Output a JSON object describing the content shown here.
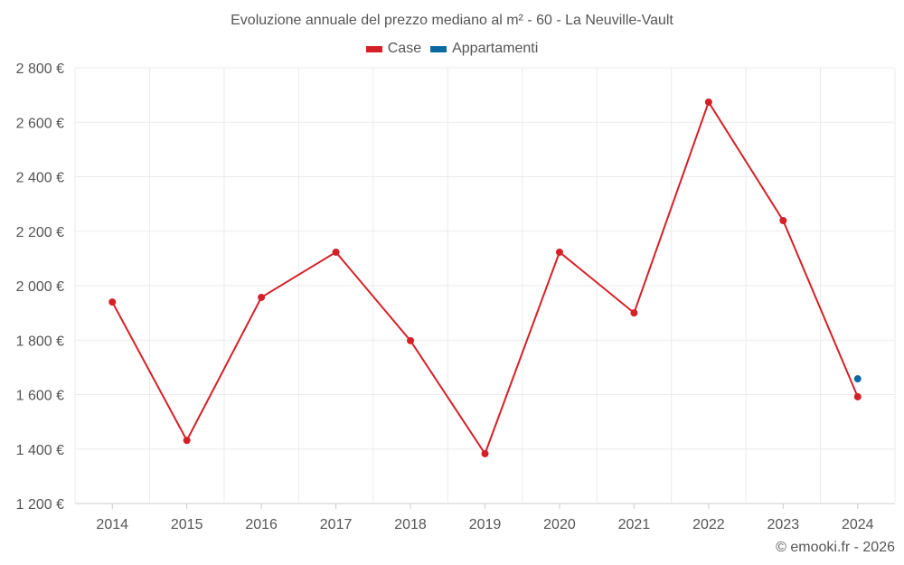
{
  "chart_data": {
    "type": "line",
    "title": "Evoluzione annuale del prezzo mediano al m² - 60 - La Neuville-Vault",
    "categories": [
      "2014",
      "2015",
      "2016",
      "2017",
      "2018",
      "2019",
      "2020",
      "2021",
      "2022",
      "2023",
      "2024"
    ],
    "series": [
      {
        "name": "Case",
        "color": "#d62027",
        "values": [
          1940,
          1432,
          1957,
          2123,
          1798,
          1383,
          2123,
          1900,
          2674,
          2239,
          1592
        ]
      },
      {
        "name": "Appartamenti",
        "color": "#0b6aa2",
        "values": [
          null,
          null,
          null,
          null,
          null,
          null,
          null,
          null,
          null,
          null,
          1658
        ]
      }
    ],
    "ylim": [
      1200,
      2800
    ],
    "yticks": [
      1200,
      1400,
      1600,
      1800,
      2000,
      2200,
      2400,
      2600,
      2800
    ],
    "ytick_labels": [
      "1 200 €",
      "1 400 €",
      "1 600 €",
      "1 800 €",
      "2 000 €",
      "2 200 €",
      "2 400 €",
      "2 600 €",
      "2 800 €"
    ],
    "xlabel": "",
    "ylabel": "",
    "grid": true,
    "legend": "top-center"
  },
  "credit": "© emooki.fr - 2026"
}
